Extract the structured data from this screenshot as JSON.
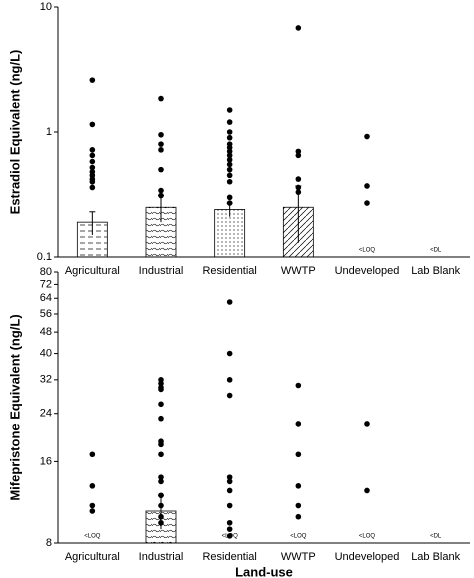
{
  "chart_data": [
    {
      "type": "bar",
      "ylabel": "Estradiol Equivalent (ng/L)",
      "log": true,
      "color": "#000000",
      "categories": [
        "Agricultural",
        "Industrial",
        "Residential",
        "WWTP",
        "Undeveloped",
        "Lab Blank"
      ],
      "values": [
        0.19,
        0.25,
        0.24,
        0.25,
        null,
        null
      ],
      "errors": [
        0.04,
        0.06,
        0.03,
        0.12,
        null,
        null
      ],
      "points": [
        [
          2.6,
          1.15,
          0.72,
          0.65,
          0.58,
          0.52,
          0.48,
          0.45,
          0.42,
          0.4,
          0.36
        ],
        [
          1.85,
          0.95,
          0.8,
          0.72,
          0.5,
          0.34,
          0.31
        ],
        [
          1.5,
          1.2,
          1.0,
          0.9,
          0.8,
          0.75,
          0.7,
          0.65,
          0.6,
          0.55,
          0.5,
          0.45,
          0.4,
          0.3,
          0.27
        ],
        [
          6.8,
          0.7,
          0.65,
          0.42,
          0.36,
          0.33
        ],
        [
          0.92,
          0.37,
          0.27
        ],
        []
      ],
      "notes": [
        null,
        null,
        null,
        null,
        "<LOQ",
        "<DL"
      ],
      "ylim": [
        0.1,
        10
      ],
      "yticks": [
        0.1,
        1,
        10
      ]
    },
    {
      "type": "bar",
      "ylabel": "Mifepristone Equivalent (ng/L)",
      "xlabel": "Land-use",
      "log": true,
      "color": "#000000",
      "categories": [
        "Agricultural",
        "Industrial",
        "Residential",
        "WWTP",
        "Undeveloped",
        "Lab Blank"
      ],
      "values": [
        null,
        10.5,
        null,
        null,
        null,
        null
      ],
      "errors": [
        null,
        1.5,
        null,
        null,
        null,
        null
      ],
      "points": [
        [
          17,
          13,
          11,
          10.5
        ],
        [
          32,
          31,
          30,
          29.5,
          26,
          23,
          19,
          18.5,
          17,
          14,
          13.5,
          12,
          11,
          10,
          9.5
        ],
        [
          62,
          40,
          32,
          28,
          14,
          13.5,
          12.5,
          11,
          9.5,
          9,
          8.5
        ],
        [
          30.5,
          22,
          17,
          13,
          11,
          10
        ],
        [
          22,
          12.5
        ],
        []
      ],
      "notes": [
        "<LOQ",
        null,
        "<LOQ",
        "<LOQ",
        "<LOQ",
        "<DL"
      ],
      "ylim": [
        8,
        80
      ],
      "yticks": [
        8,
        16,
        24,
        32,
        40,
        48,
        56,
        64,
        72,
        80
      ]
    }
  ]
}
